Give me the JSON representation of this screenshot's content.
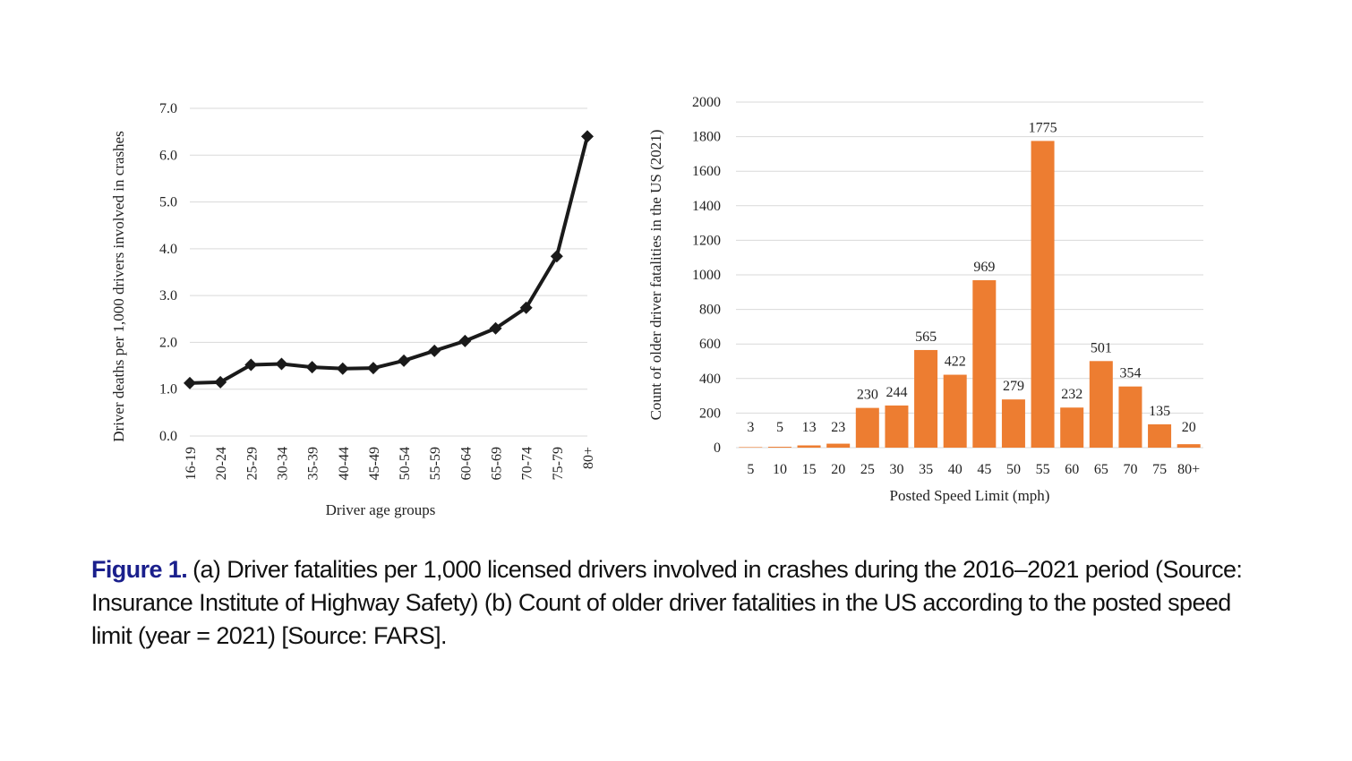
{
  "caption": {
    "label": "Figure 1.",
    "text": "(a) Driver fatalities per 1,000 licensed drivers involved in crashes during the 2016–2021 period (Source: Insurance Institute of Highway Safety) (b) Count of older driver fatalities in the US according to the posted speed limit (year = 2021) [Source: FARS].",
    "label_color": "#1a1f8c"
  },
  "chart_data": [
    {
      "type": "line",
      "xlabel": "Driver age groups",
      "ylabel": "Driver deaths per 1,000 drivers involved in crashes",
      "categories": [
        "16-19",
        "20-24",
        "25-29",
        "30-34",
        "35-39",
        "40-44",
        "45-49",
        "50-54",
        "55-59",
        "60-64",
        "65-69",
        "70-74",
        "75-79",
        "80+"
      ],
      "values": [
        1.13,
        1.15,
        1.52,
        1.54,
        1.47,
        1.44,
        1.45,
        1.61,
        1.82,
        2.03,
        2.3,
        2.74,
        3.84,
        6.4
      ],
      "yticks": [
        "0.0",
        "1.0",
        "2.0",
        "3.0",
        "4.0",
        "5.0",
        "6.0",
        "7.0"
      ],
      "ylim": [
        0,
        7
      ],
      "grid": true,
      "line_color": "#1a1a1a",
      "marker": "diamond"
    },
    {
      "type": "bar",
      "xlabel": "Posted Speed Limit (mph)",
      "ylabel": "Count of older driver fatalities in the US (2021)",
      "categories": [
        "5",
        "10",
        "15",
        "20",
        "25",
        "30",
        "35",
        "40",
        "45",
        "50",
        "55",
        "60",
        "65",
        "70",
        "75",
        "80+"
      ],
      "values": [
        3,
        5,
        13,
        23,
        230,
        244,
        565,
        422,
        969,
        279,
        1775,
        232,
        501,
        354,
        135,
        20
      ],
      "data_labels": [
        "3",
        "5",
        "13",
        "23",
        "230",
        "244",
        "565",
        "422",
        "969",
        "279",
        "1775",
        "232",
        "501",
        "354",
        "135",
        "20"
      ],
      "yticks": [
        "0",
        "200",
        "400",
        "600",
        "800",
        "1000",
        "1200",
        "1400",
        "1600",
        "1800",
        "2000"
      ],
      "ylim": [
        0,
        2000
      ],
      "grid": true,
      "bar_color": "#ed7d31"
    }
  ]
}
